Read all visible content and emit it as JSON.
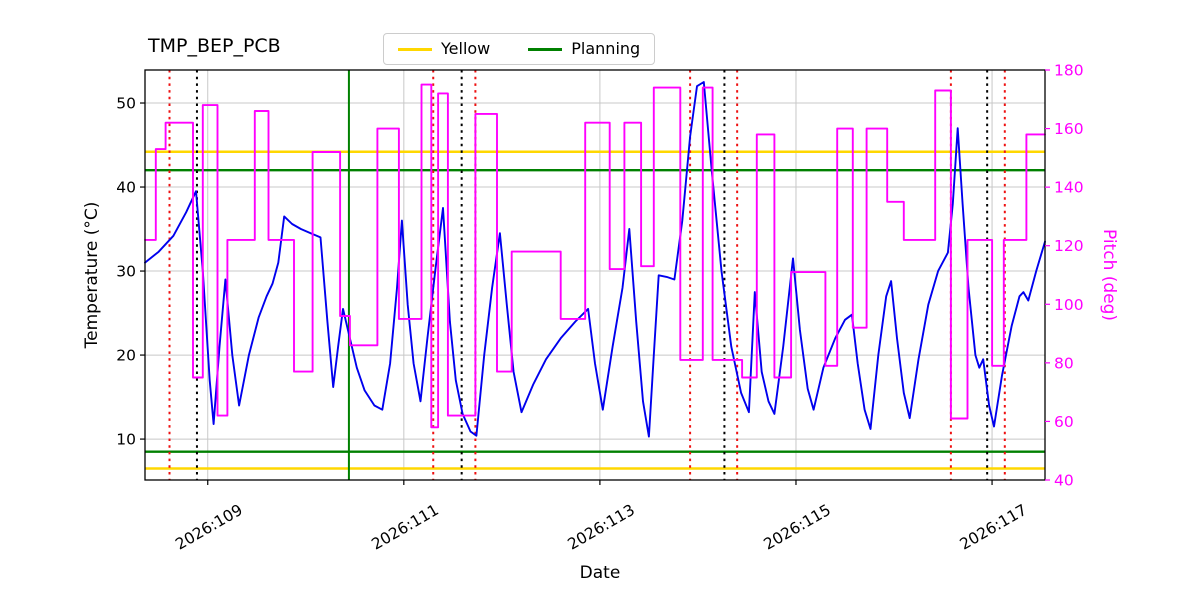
{
  "title": "TMP_BEP_PCB",
  "legend": [
    {
      "label": "Yellow",
      "color": "#ffd700"
    },
    {
      "label": "Planning",
      "color": "#008000"
    }
  ],
  "chart_data": {
    "type": "line",
    "title": "TMP_BEP_PCB",
    "xlabel": "Date",
    "ylabel_left": "Temperature (°C)",
    "ylabel_right": "Pitch (deg)",
    "legend_position": "upper center",
    "grid": true,
    "xlim": [
      108.36,
      117.54
    ],
    "ylim_left": [
      5.13,
      53.93
    ],
    "ylim_right": [
      40,
      180
    ],
    "x_tick_values": [
      109,
      111,
      113,
      115,
      117
    ],
    "x_tick_labels": [
      "2026:109",
      "2026:111",
      "2026:113",
      "2026:115",
      "2026:117"
    ],
    "yticks_left": [
      10,
      20,
      30,
      40,
      50
    ],
    "yticks_right": [
      40,
      60,
      80,
      100,
      120,
      140,
      160,
      180
    ],
    "colors": {
      "temperature": "#0000ee",
      "pitch": "#ff00ff",
      "yellow_limit": "#ffd700",
      "planning_limit": "#008000",
      "grid": "#c8c8c8",
      "red_event": "#ee1111",
      "black_event": "#000000",
      "green_event": "#008000"
    },
    "hlines": [
      {
        "name": "yellow-limit-upper",
        "y": 44.2,
        "color": "#ffd700"
      },
      {
        "name": "yellow-limit-lower",
        "y": 6.5,
        "color": "#ffd700"
      },
      {
        "name": "planning-limit-upper",
        "y": 42.0,
        "color": "#008000"
      },
      {
        "name": "planning-limit-lower",
        "y": 8.5,
        "color": "#008000"
      }
    ],
    "vlines": [
      {
        "x": 108.61,
        "color": "#ee1111",
        "style": "dotted"
      },
      {
        "x": 108.89,
        "color": "#000000",
        "style": "dotted"
      },
      {
        "x": 110.44,
        "color": "#008000",
        "style": "solid"
      },
      {
        "x": 111.3,
        "color": "#ee1111",
        "style": "dotted"
      },
      {
        "x": 111.59,
        "color": "#000000",
        "style": "dotted"
      },
      {
        "x": 111.73,
        "color": "#ee1111",
        "style": "dotted"
      },
      {
        "x": 113.92,
        "color": "#ee1111",
        "style": "dotted"
      },
      {
        "x": 114.27,
        "color": "#000000",
        "style": "dotted"
      },
      {
        "x": 114.4,
        "color": "#ee1111",
        "style": "dotted"
      },
      {
        "x": 116.58,
        "color": "#ee1111",
        "style": "dotted"
      },
      {
        "x": 116.95,
        "color": "#000000",
        "style": "dotted"
      },
      {
        "x": 117.13,
        "color": "#ee1111",
        "style": "dotted"
      }
    ],
    "series": [
      {
        "name": "temperature",
        "axis": "left",
        "step": false,
        "color": "#0000ee",
        "points": [
          [
            108.36,
            31.0
          ],
          [
            108.5,
            32.3
          ],
          [
            108.65,
            34.2
          ],
          [
            108.78,
            37.0
          ],
          [
            108.88,
            39.5
          ],
          [
            108.95,
            30.0
          ],
          [
            109.02,
            17.0
          ],
          [
            109.06,
            11.8
          ],
          [
            109.12,
            21.0
          ],
          [
            109.18,
            29.0
          ],
          [
            109.25,
            20.0
          ],
          [
            109.32,
            14.0
          ],
          [
            109.42,
            20.0
          ],
          [
            109.52,
            24.5
          ],
          [
            109.6,
            27.0
          ],
          [
            109.66,
            28.5
          ],
          [
            109.72,
            31.0
          ],
          [
            109.78,
            36.5
          ],
          [
            109.86,
            35.6
          ],
          [
            109.95,
            35.0
          ],
          [
            110.05,
            34.5
          ],
          [
            110.15,
            34.0
          ],
          [
            110.22,
            24.0
          ],
          [
            110.28,
            16.2
          ],
          [
            110.33,
            21.0
          ],
          [
            110.38,
            25.5
          ],
          [
            110.45,
            22.0
          ],
          [
            110.52,
            18.5
          ],
          [
            110.6,
            15.8
          ],
          [
            110.7,
            14.0
          ],
          [
            110.78,
            13.5
          ],
          [
            110.86,
            19.0
          ],
          [
            110.93,
            28.0
          ],
          [
            110.98,
            36.0
          ],
          [
            111.04,
            26.0
          ],
          [
            111.1,
            19.0
          ],
          [
            111.17,
            14.5
          ],
          [
            111.24,
            22.0
          ],
          [
            111.32,
            30.0
          ],
          [
            111.4,
            37.5
          ],
          [
            111.47,
            24.0
          ],
          [
            111.53,
            17.0
          ],
          [
            111.6,
            13.0
          ],
          [
            111.68,
            10.9
          ],
          [
            111.74,
            10.4
          ],
          [
            111.82,
            20.0
          ],
          [
            111.9,
            28.0
          ],
          [
            111.98,
            34.5
          ],
          [
            112.05,
            26.0
          ],
          [
            112.12,
            18.0
          ],
          [
            112.2,
            13.2
          ],
          [
            112.32,
            16.5
          ],
          [
            112.45,
            19.5
          ],
          [
            112.6,
            22.0
          ],
          [
            112.75,
            24.0
          ],
          [
            112.88,
            25.5
          ],
          [
            112.95,
            19.0
          ],
          [
            113.03,
            13.5
          ],
          [
            113.13,
            21.0
          ],
          [
            113.23,
            28.0
          ],
          [
            113.3,
            35.0
          ],
          [
            113.37,
            24.0
          ],
          [
            113.44,
            14.5
          ],
          [
            113.5,
            10.3
          ],
          [
            113.55,
            20.0
          ],
          [
            113.6,
            29.5
          ],
          [
            113.68,
            29.3
          ],
          [
            113.76,
            29.0
          ],
          [
            113.84,
            36.0
          ],
          [
            113.92,
            46.0
          ],
          [
            113.99,
            52.0
          ],
          [
            114.06,
            52.5
          ],
          [
            114.14,
            42.0
          ],
          [
            114.24,
            30.0
          ],
          [
            114.34,
            21.0
          ],
          [
            114.44,
            15.5
          ],
          [
            114.52,
            13.2
          ],
          [
            114.58,
            27.5
          ],
          [
            114.65,
            18.0
          ],
          [
            114.72,
            14.5
          ],
          [
            114.78,
            13.0
          ],
          [
            114.87,
            21.0
          ],
          [
            114.97,
            31.5
          ],
          [
            115.04,
            23.0
          ],
          [
            115.12,
            16.0
          ],
          [
            115.18,
            13.5
          ],
          [
            115.28,
            18.5
          ],
          [
            115.4,
            22.0
          ],
          [
            115.5,
            24.2
          ],
          [
            115.57,
            24.8
          ],
          [
            115.63,
            19.0
          ],
          [
            115.7,
            13.5
          ],
          [
            115.76,
            11.2
          ],
          [
            115.84,
            20.0
          ],
          [
            115.92,
            27.0
          ],
          [
            115.97,
            28.8
          ],
          [
            116.03,
            22.0
          ],
          [
            116.1,
            15.5
          ],
          [
            116.16,
            12.5
          ],
          [
            116.25,
            19.5
          ],
          [
            116.35,
            26.0
          ],
          [
            116.45,
            30.0
          ],
          [
            116.55,
            32.2
          ],
          [
            116.6,
            38.0
          ],
          [
            116.65,
            47.0
          ],
          [
            116.7,
            38.0
          ],
          [
            116.76,
            28.0
          ],
          [
            116.83,
            20.0
          ],
          [
            116.87,
            18.5
          ],
          [
            116.91,
            19.5
          ],
          [
            116.97,
            14.0
          ],
          [
            117.02,
            11.5
          ],
          [
            117.1,
            17.5
          ],
          [
            117.2,
            23.5
          ],
          [
            117.28,
            27.0
          ],
          [
            117.32,
            27.5
          ],
          [
            117.37,
            26.5
          ],
          [
            117.45,
            30.0
          ],
          [
            117.54,
            33.5
          ]
        ]
      },
      {
        "name": "pitch",
        "axis": "right",
        "step": true,
        "color": "#ff00ff",
        "points": [
          [
            108.36,
            122
          ],
          [
            108.47,
            153
          ],
          [
            108.57,
            162
          ],
          [
            108.85,
            75
          ],
          [
            108.95,
            168
          ],
          [
            109.1,
            62
          ],
          [
            109.2,
            122
          ],
          [
            109.48,
            166
          ],
          [
            109.62,
            122
          ],
          [
            109.88,
            77
          ],
          [
            110.07,
            152
          ],
          [
            110.35,
            96
          ],
          [
            110.45,
            86
          ],
          [
            110.73,
            160
          ],
          [
            110.95,
            95
          ],
          [
            111.18,
            175
          ],
          [
            111.28,
            58
          ],
          [
            111.35,
            172
          ],
          [
            111.45,
            62
          ],
          [
            111.73,
            165
          ],
          [
            111.95,
            77
          ],
          [
            112.1,
            118
          ],
          [
            112.6,
            95
          ],
          [
            112.85,
            162
          ],
          [
            113.1,
            112
          ],
          [
            113.25,
            162
          ],
          [
            113.42,
            113
          ],
          [
            113.55,
            174
          ],
          [
            113.82,
            81
          ],
          [
            114.05,
            174
          ],
          [
            114.15,
            81
          ],
          [
            114.45,
            75
          ],
          [
            114.6,
            158
          ],
          [
            114.78,
            75
          ],
          [
            114.95,
            111
          ],
          [
            115.3,
            79
          ],
          [
            115.42,
            160
          ],
          [
            115.58,
            92
          ],
          [
            115.72,
            160
          ],
          [
            115.93,
            135
          ],
          [
            116.1,
            122
          ],
          [
            116.42,
            173
          ],
          [
            116.58,
            61
          ],
          [
            116.75,
            122
          ],
          [
            117.0,
            79
          ],
          [
            117.12,
            122
          ],
          [
            117.35,
            158
          ],
          [
            117.54,
            158
          ]
        ]
      }
    ]
  }
}
